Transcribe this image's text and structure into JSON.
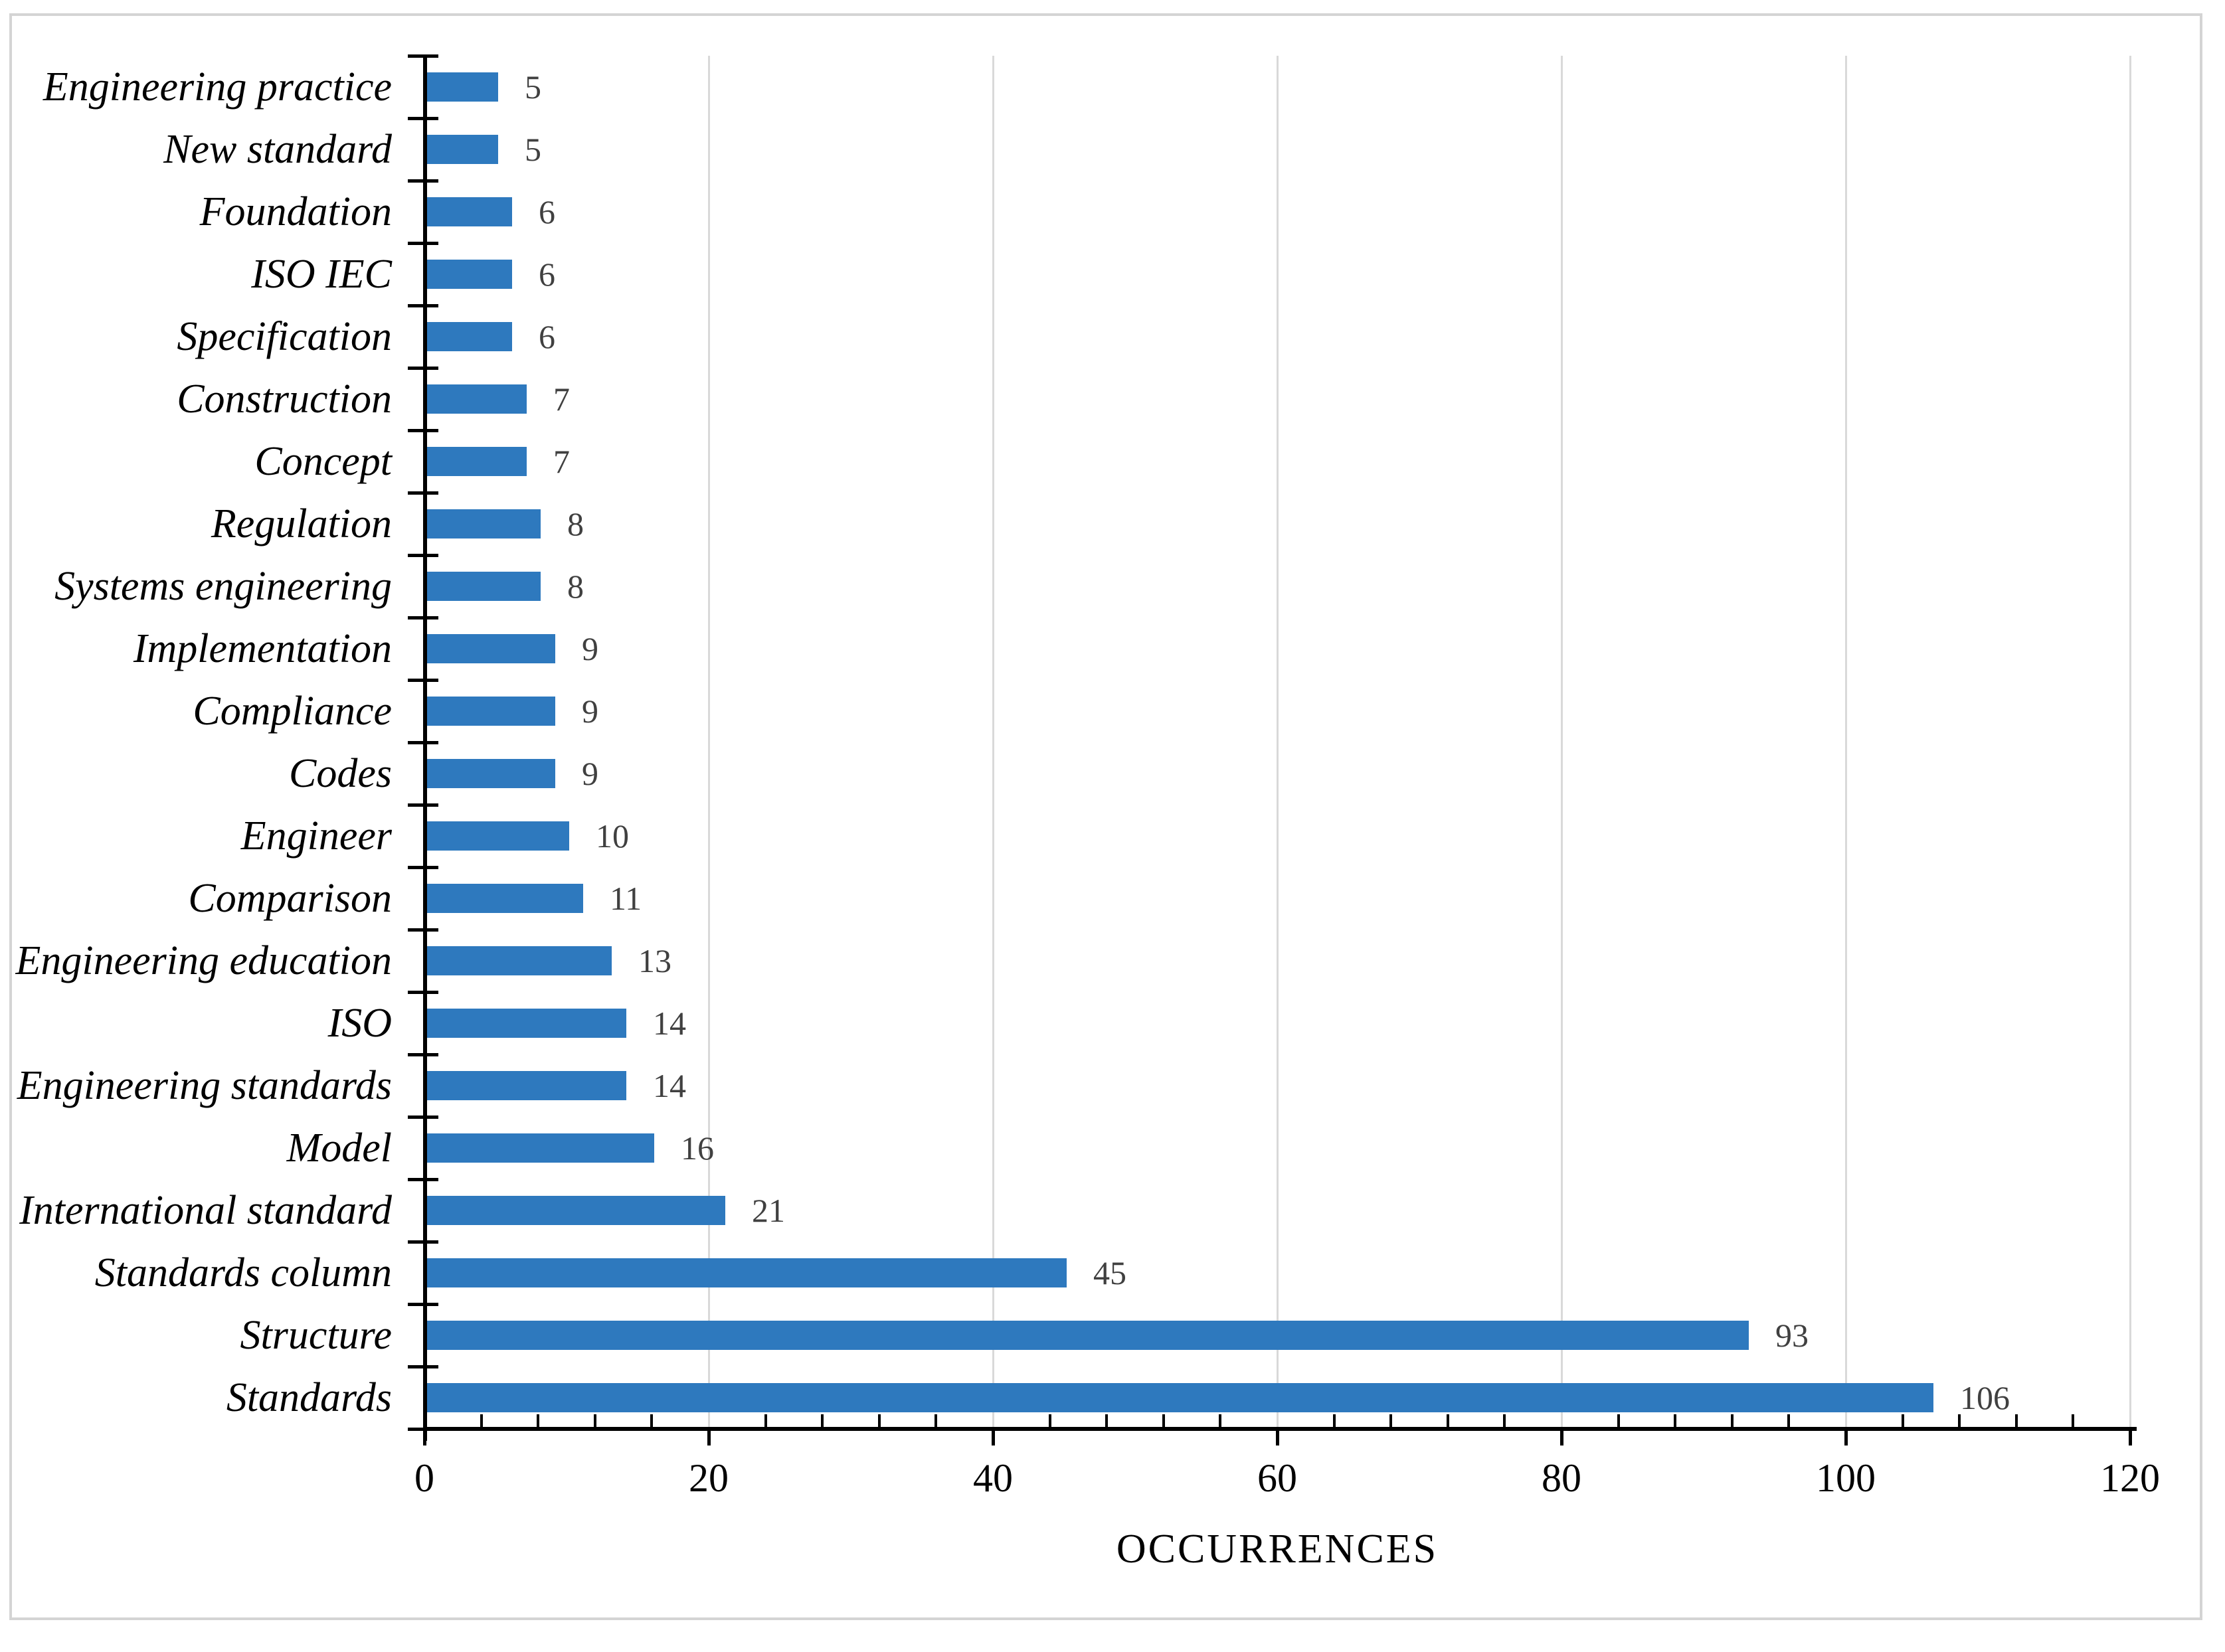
{
  "figure": {
    "background_color": "#FFFFFF",
    "frame_border_color": "#D4D4D4"
  },
  "chart_data": {
    "type": "bar",
    "orientation": "horizontal",
    "title": "",
    "xlabel": "OCCURRENCES",
    "ylabel": "",
    "categories": [
      "Engineering practice",
      "New standard",
      "Foundation",
      "ISO IEC",
      "Specification",
      "Construction",
      "Concept",
      "Regulation",
      "Systems engineering",
      "Implementation",
      "Compliance",
      "Codes",
      "Engineer",
      "Comparison",
      "Engineering education",
      "ISO",
      "Engineering standards",
      "Model",
      "International standard",
      "Standards column",
      "Structure",
      "Standards"
    ],
    "values": [
      5,
      5,
      6,
      6,
      6,
      7,
      7,
      8,
      8,
      9,
      9,
      9,
      10,
      11,
      13,
      14,
      14,
      16,
      21,
      45,
      93,
      106
    ],
    "data_labels": [
      "5",
      "5",
      "6",
      "6",
      "6",
      "7",
      "7",
      "8",
      "8",
      "9",
      "9",
      "9",
      "10",
      "11",
      "13",
      "14",
      "14",
      "16",
      "21",
      "45",
      "93",
      "106"
    ],
    "xlim": [
      0,
      120
    ],
    "x_major_ticks": [
      0,
      20,
      40,
      60,
      80,
      100,
      120
    ],
    "x_tick_labels": [
      "0",
      "20",
      "40",
      "60",
      "80",
      "100",
      "120"
    ],
    "x_minor_tick_step": 4,
    "grid": "vertical-major-only",
    "legend": "none",
    "bar_color": "#2E79BE",
    "value_label_color": "#404040",
    "gridline_color": "#D9D9D9",
    "axis_color": "#000000"
  }
}
